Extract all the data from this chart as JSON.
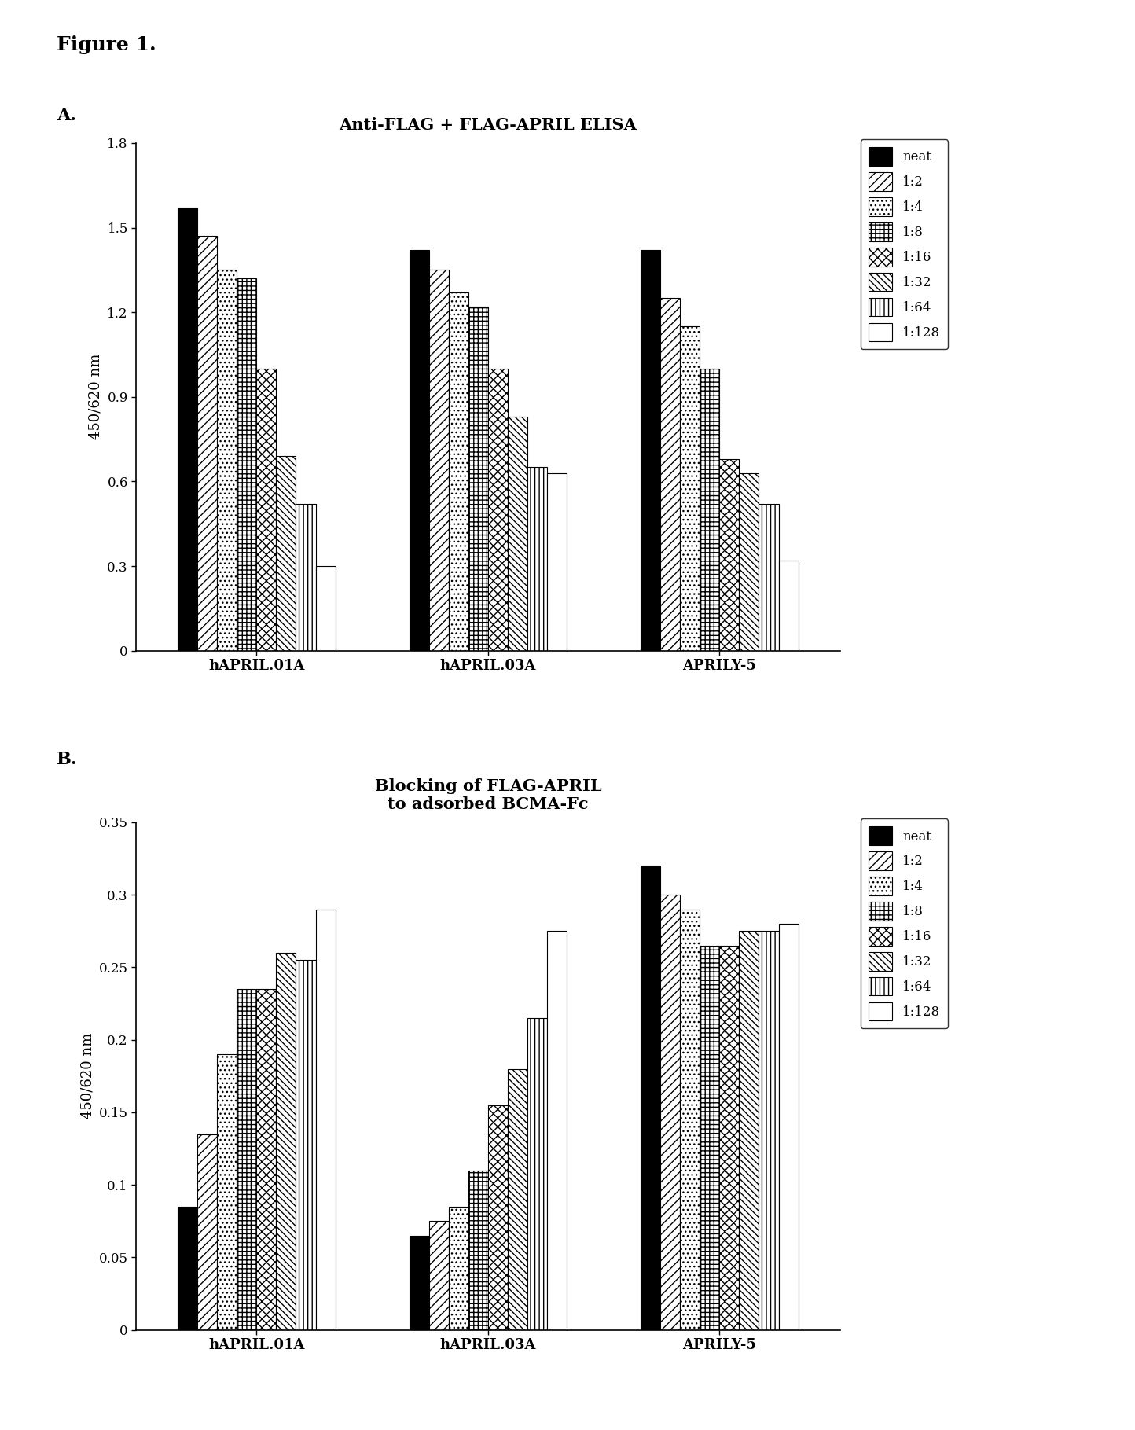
{
  "chart_A": {
    "title": "Anti-FLAG + FLAG-APRIL ELISA",
    "ylabel": "450/620 nm",
    "ylim": [
      0,
      1.8
    ],
    "yticks": [
      0,
      0.3,
      0.6,
      0.9,
      1.2,
      1.5,
      1.8
    ],
    "groups": [
      "hAPRIL.01A",
      "hAPRIL.03A",
      "APRILY-5"
    ],
    "series": {
      "neat": [
        1.57,
        1.42,
        1.42
      ],
      "1:2": [
        1.47,
        1.35,
        1.25
      ],
      "1:4": [
        1.35,
        1.27,
        1.15
      ],
      "1:8": [
        1.32,
        1.22,
        1.0
      ],
      "1:16": [
        1.0,
        1.0,
        0.68
      ],
      "1:32": [
        0.69,
        0.83,
        0.63
      ],
      "1:64": [
        0.52,
        0.65,
        0.52
      ],
      "1:128": [
        0.3,
        0.63,
        0.32
      ]
    }
  },
  "chart_B": {
    "title": "Blocking of FLAG-APRIL\nto adsorbed BCMA-Fc",
    "ylabel": "450/620 nm",
    "ylim": [
      0,
      0.35
    ],
    "yticks": [
      0,
      0.05,
      0.1,
      0.15,
      0.2,
      0.25,
      0.3,
      0.35
    ],
    "groups": [
      "hAPRIL.01A",
      "hAPRIL.03A",
      "APRILY-5"
    ],
    "series": {
      "neat": [
        0.085,
        0.065,
        0.32
      ],
      "1:2": [
        0.135,
        0.075,
        0.3
      ],
      "1:4": [
        0.19,
        0.085,
        0.29
      ],
      "1:8": [
        0.235,
        0.11,
        0.265
      ],
      "1:16": [
        0.235,
        0.155,
        0.265
      ],
      "1:32": [
        0.26,
        0.18,
        0.275
      ],
      "1:64": [
        0.255,
        0.215,
        0.275
      ],
      "1:128": [
        0.29,
        0.275,
        0.28
      ]
    }
  },
  "series_labels": [
    "neat",
    "1:2",
    "1:4",
    "1:8",
    "1:16",
    "1:32",
    "1:64",
    "1:128"
  ],
  "figure_title": "Figure 1.",
  "panel_A_label": "A.",
  "panel_B_label": "B."
}
